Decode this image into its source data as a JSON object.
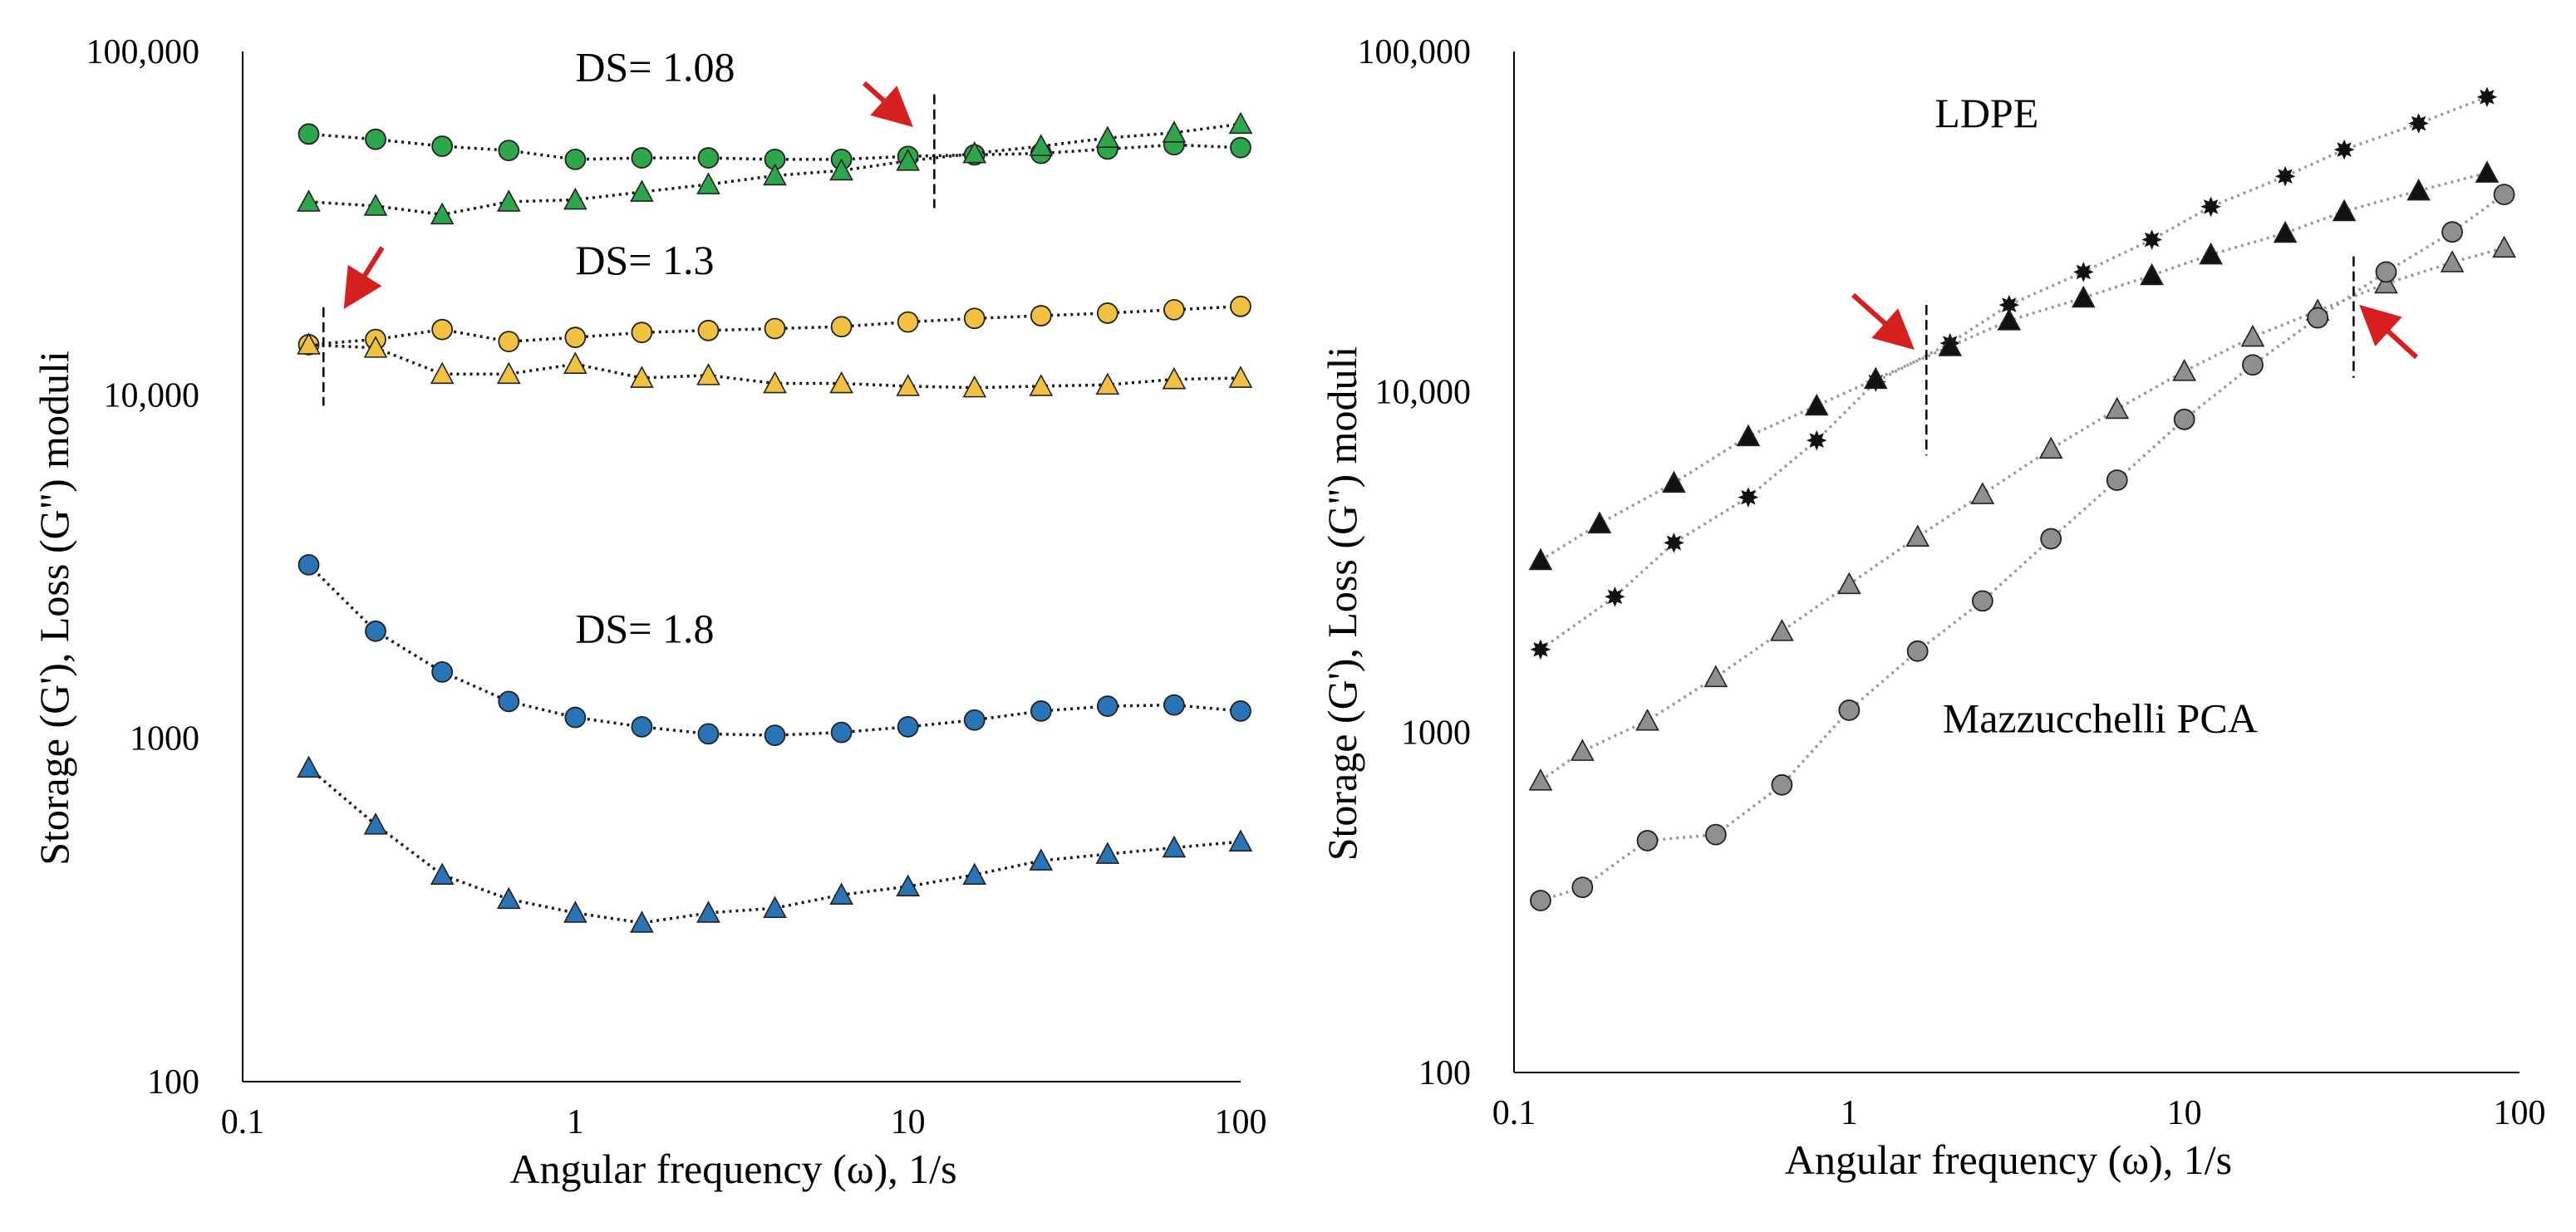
{
  "figure": {
    "background": "#ffffff"
  },
  "chart_data": [
    {
      "type": "scatter",
      "xlabel": "Angular frequency (ω), 1/s",
      "ylabel": "Storage (G'), Loss (G\") moduli",
      "xscale": "log",
      "yscale": "log",
      "xlim": [
        0.1,
        100
      ],
      "ylim": [
        100,
        100000
      ],
      "xticks": [
        "0.1",
        "1",
        "10",
        "100"
      ],
      "yticks": [
        "100",
        "1000",
        "10,000",
        "100,000"
      ],
      "grid": false,
      "legend": "none",
      "annotations": [
        {
          "text": "DS= 1.08",
          "x": 1.0,
          "y": 82000
        },
        {
          "text": "DS= 1.3",
          "x": 1.0,
          "y": 22500
        },
        {
          "text": "DS= 1.8",
          "x": 1.0,
          "y": 1900
        }
      ],
      "crossovers": [
        {
          "x": 12.0,
          "y_range": [
            35000,
            75000
          ]
        },
        {
          "x": 0.175,
          "y_range": [
            9300,
            18000
          ]
        }
      ],
      "series": [
        {
          "marker": "circle",
          "color": "#2ea64b",
          "x": [
            0.158,
            0.251,
            0.398,
            0.631,
            1,
            1.585,
            2.512,
            3.981,
            6.31,
            10,
            15.85,
            25.12,
            39.81,
            63.1,
            100
          ],
          "y": [
            57500,
            55500,
            53000,
            51500,
            48500,
            49000,
            49000,
            48500,
            48500,
            49500,
            50000,
            50500,
            52000,
            53500,
            52500
          ]
        },
        {
          "marker": "triangle",
          "color": "#2ea64b",
          "x": [
            0.158,
            0.251,
            0.398,
            0.631,
            1,
            1.585,
            2.512,
            3.981,
            6.31,
            10,
            15.85,
            25.12,
            39.81,
            63.1,
            100
          ],
          "y": [
            36500,
            35500,
            33500,
            36500,
            37000,
            39000,
            41000,
            43500,
            45000,
            48000,
            50500,
            53000,
            56000,
            58000,
            61500
          ]
        },
        {
          "marker": "circle",
          "color": "#f2c142",
          "x": [
            0.158,
            0.251,
            0.398,
            0.631,
            1,
            1.585,
            2.512,
            3.981,
            6.31,
            10,
            15.85,
            25.12,
            39.81,
            63.1,
            100
          ],
          "y": [
            14000,
            14500,
            15500,
            14300,
            14700,
            15200,
            15400,
            15600,
            15800,
            16300,
            16700,
            17000,
            17300,
            17700,
            18100
          ]
        },
        {
          "marker": "triangle",
          "color": "#f2c142",
          "x": [
            0.158,
            0.251,
            0.398,
            0.631,
            1,
            1.585,
            2.512,
            3.981,
            6.31,
            10,
            15.85,
            25.12,
            39.81,
            63.1,
            100
          ],
          "y": [
            14000,
            13700,
            11500,
            11500,
            12300,
            11200,
            11400,
            10800,
            10800,
            10600,
            10500,
            10600,
            10700,
            11100,
            11200
          ]
        },
        {
          "marker": "circle",
          "color": "#2874b5",
          "x": [
            0.158,
            0.251,
            0.398,
            0.631,
            1,
            1.585,
            2.512,
            3.981,
            6.31,
            10,
            15.85,
            25.12,
            39.81,
            63.1,
            100
          ],
          "y": [
            3200,
            2050,
            1560,
            1280,
            1150,
            1080,
            1030,
            1020,
            1040,
            1080,
            1130,
            1200,
            1240,
            1250,
            1200
          ]
        },
        {
          "marker": "triangle",
          "color": "#2874b5",
          "x": [
            0.158,
            0.251,
            0.398,
            0.631,
            1,
            1.585,
            2.512,
            3.981,
            6.31,
            10,
            15.85,
            25.12,
            39.81,
            63.1,
            100
          ],
          "y": [
            820,
            560,
            400,
            340,
            310,
            290,
            310,
            320,
            350,
            370,
            400,
            440,
            460,
            480,
            500
          ]
        }
      ]
    },
    {
      "type": "scatter",
      "xlabel": "Angular frequency (ω), 1/s",
      "ylabel": "Storage (G'), Loss (G\") moduli",
      "xscale": "log",
      "yscale": "log",
      "xlim": [
        0.1,
        100
      ],
      "ylim": [
        100,
        100000
      ],
      "xticks": [
        "0.1",
        "1",
        "10",
        "100"
      ],
      "yticks": [
        "100",
        "1000",
        "10,000",
        "100,000"
      ],
      "grid": false,
      "legend": "none",
      "annotations": [
        {
          "text": "LDPE",
          "x": 1.8,
          "y": 60000
        },
        {
          "text": "Mazzucchelli PCA",
          "x": 1.9,
          "y": 1000
        }
      ],
      "crossovers": [
        {
          "x": 1.7,
          "y_range": [
            6500,
            18000
          ]
        },
        {
          "x": 32,
          "y_range": [
            11000,
            25000
          ]
        }
      ],
      "series": [
        {
          "marker": "star",
          "color": "#111111",
          "x": [
            0.12,
            0.2,
            0.3,
            0.5,
            0.8,
            1.2,
            2,
            3,
            5,
            8,
            12,
            20,
            30,
            50,
            80
          ],
          "y": [
            1750,
            2500,
            3600,
            4900,
            7200,
            10700,
            13900,
            18000,
            22500,
            28000,
            35000,
            43000,
            51500,
            61500,
            73500
          ]
        },
        {
          "marker": "triangle",
          "color": "#111111",
          "x": [
            0.12,
            0.18,
            0.3,
            0.5,
            0.8,
            1.2,
            2,
            3,
            5,
            8,
            12,
            20,
            30,
            50,
            80
          ],
          "y": [
            3200,
            4100,
            5400,
            7400,
            9100,
            10900,
            13600,
            16200,
            18900,
            22000,
            25300,
            29300,
            33900,
            39000,
            44000
          ]
        },
        {
          "marker": "triangle",
          "color": "#8f8f8f",
          "x": [
            0.12,
            0.16,
            0.25,
            0.4,
            0.63,
            1,
            1.6,
            2.5,
            4,
            6.3,
            10,
            16,
            25,
            40,
            63,
            90
          ],
          "y": [
            720,
            880,
            1080,
            1450,
            1980,
            2720,
            3750,
            5000,
            6800,
            8900,
            11500,
            14500,
            17300,
            20800,
            24000,
            26500
          ]
        },
        {
          "marker": "circle",
          "color": "#8f8f8f",
          "x": [
            0.12,
            0.16,
            0.25,
            0.4,
            0.63,
            1,
            1.6,
            2.5,
            4,
            6.3,
            10,
            16,
            25,
            40,
            63,
            90
          ],
          "y": [
            320,
            350,
            480,
            500,
            700,
            1160,
            1730,
            2430,
            3700,
            5500,
            8300,
            12000,
            16500,
            22500,
            29500,
            38000
          ]
        }
      ]
    }
  ]
}
